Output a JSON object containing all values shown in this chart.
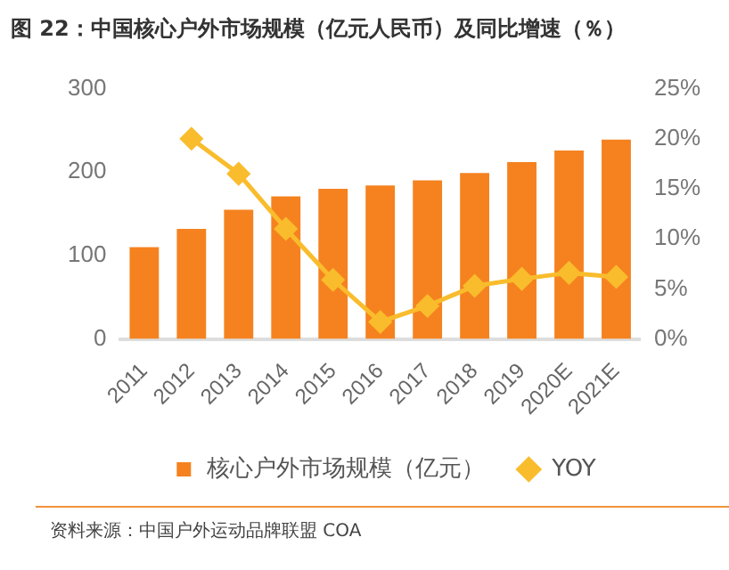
{
  "chart_data": {
    "type": "bar",
    "title": "图 22：中国核心户外市场规模（亿元人民币）及同比增速（％）",
    "categories": [
      "2011",
      "2012",
      "2013",
      "2014",
      "2015",
      "2016",
      "2017",
      "2018",
      "2019",
      "2020E",
      "2021E"
    ],
    "series": [
      {
        "name": "核心户外市场规模（亿元）",
        "color": "#f5821f",
        "values": [
          110,
          132,
          155,
          171,
          180,
          184,
          190,
          199,
          212,
          226,
          239
        ]
      },
      {
        "name": "YOY",
        "type": "line",
        "axis": "y2",
        "color": "#f9bc2c",
        "marker": "diamond",
        "values": [
          null,
          20,
          16.5,
          11,
          5.9,
          1.7,
          3.3,
          5.3,
          6,
          6.6,
          6.2
        ]
      }
    ],
    "ylim": [
      0,
      300
    ],
    "yticks": [
      0,
      100,
      200,
      300
    ],
    "y2lim": [
      0,
      25
    ],
    "y2ticks": [
      {
        "value": 0,
        "label": "0%"
      },
      {
        "value": 5,
        "label": "5%"
      },
      {
        "value": 10,
        "label": "10%"
      },
      {
        "value": 15,
        "label": "15%"
      },
      {
        "value": 20,
        "label": "20%"
      },
      {
        "value": 25,
        "label": "25%"
      }
    ],
    "grid": false,
    "legend": "bottom",
    "annotations": [
      "资料来源：中国户外运动品牌联盟 COA"
    ]
  }
}
